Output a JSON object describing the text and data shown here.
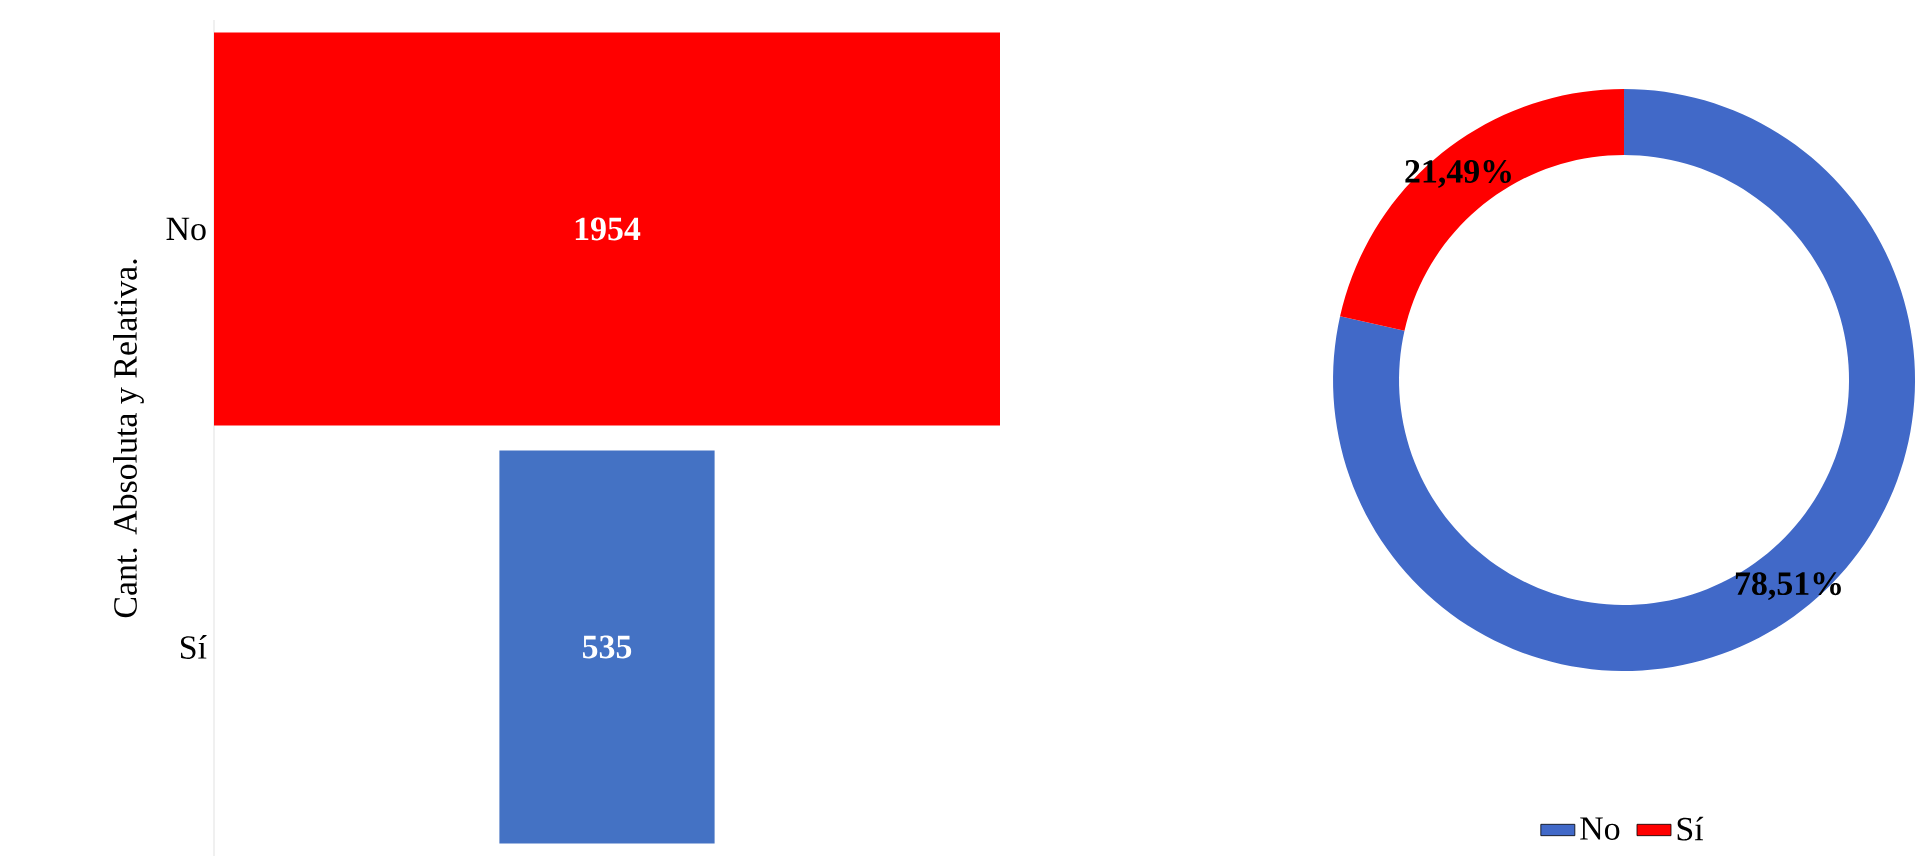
{
  "chart_data": [
    {
      "type": "other",
      "ylabel": "Cant. Absoluta y Relativa.",
      "categories": [
        "No",
        "Sí"
      ],
      "values": [
        1954,
        535
      ],
      "colors": [
        "#ff0000",
        "#4472c4"
      ],
      "data_labels": true
    },
    {
      "type": "donut",
      "categories": [
        "No",
        "Sí"
      ],
      "values": [
        78.51,
        21.49
      ],
      "colors": [
        "#4169c8",
        "#ff0000"
      ],
      "value_labels": [
        "78,51%",
        "21,49%"
      ],
      "legend": "bottom"
    }
  ]
}
